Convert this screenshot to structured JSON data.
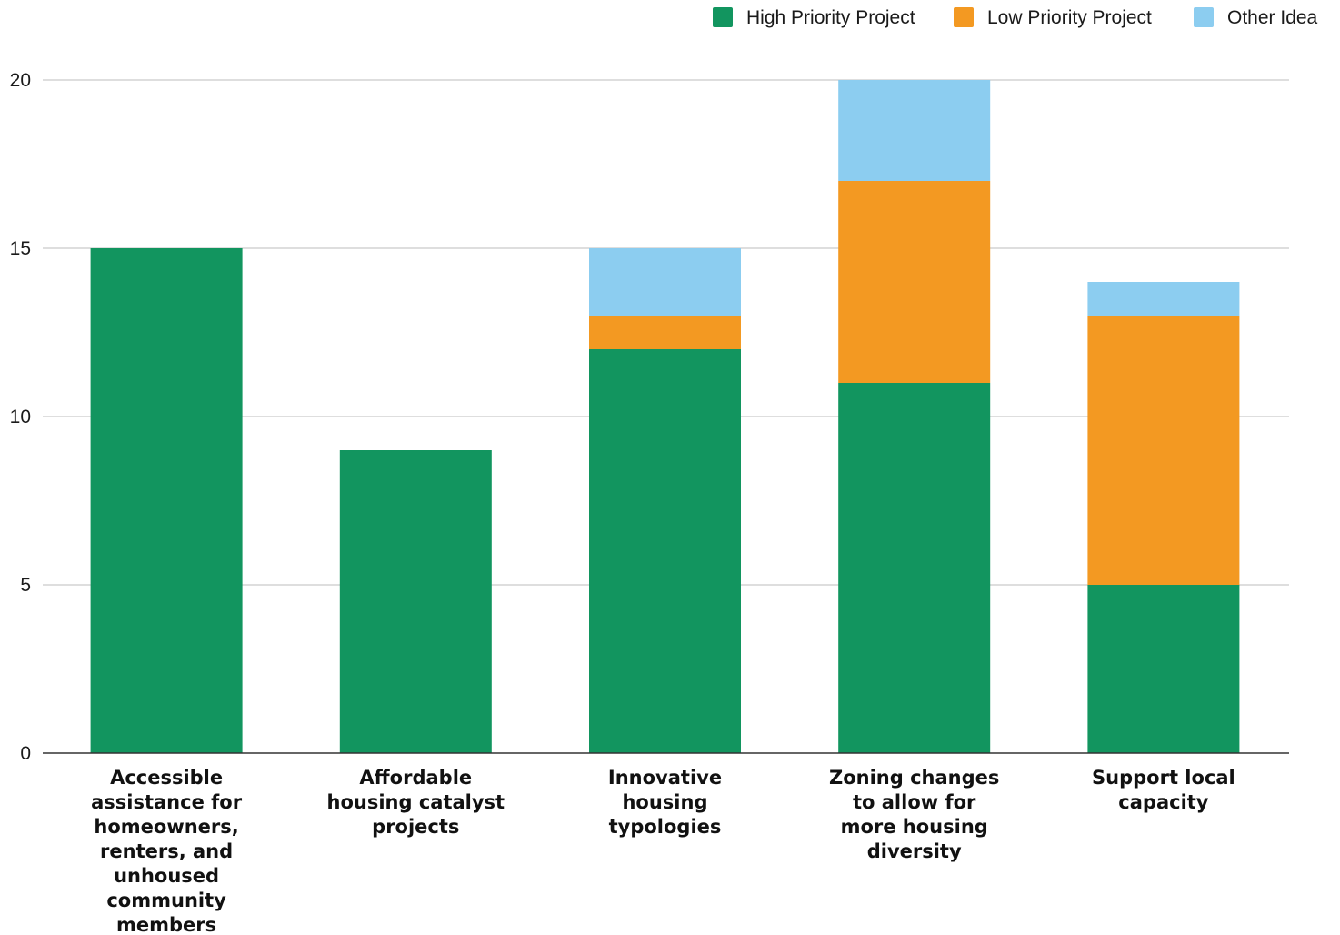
{
  "chart_data": {
    "type": "bar",
    "stacked": true,
    "categories": [
      [
        "Accessible",
        "assistance for",
        "homeowners,",
        "renters, and",
        "unhoused",
        "community",
        "members"
      ],
      [
        "Affordable",
        "housing catalyst",
        "projects"
      ],
      [
        "Innovative",
        "housing",
        "typologies"
      ],
      [
        "Zoning changes",
        "to allow for",
        "more housing",
        "diversity"
      ],
      [
        "Support local",
        "capacity"
      ]
    ],
    "series": [
      {
        "name": "High Priority Project",
        "color": "#12955f",
        "values": [
          15,
          9,
          12,
          11,
          5
        ]
      },
      {
        "name": "Low Priority Project",
        "color": "#f39922",
        "values": [
          0,
          0,
          1,
          6,
          8
        ]
      },
      {
        "name": "Other Idea",
        "color": "#8ccdf0",
        "values": [
          0,
          0,
          2,
          3,
          1
        ]
      }
    ],
    "ylim": [
      0,
      20
    ],
    "yticks": [
      "0",
      "5",
      "10",
      "15",
      "20"
    ],
    "grid": true,
    "legend_position": "top-right",
    "title": "",
    "xlabel": "",
    "ylabel": ""
  }
}
